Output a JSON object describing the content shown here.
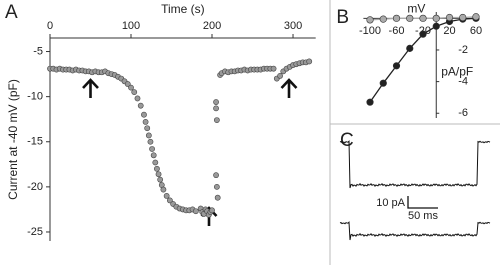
{
  "chart_data": [
    {
      "type": "scatter",
      "panel_label": "A",
      "x_label": "Time (s)",
      "y_label": "Current at -40 mV (pF)",
      "x_axis_position": "top",
      "color": "#999999",
      "x": [
        0,
        4,
        8,
        12,
        16,
        20,
        24,
        28,
        32,
        36,
        40,
        44,
        48,
        52,
        56,
        60,
        64,
        68,
        72,
        76,
        80,
        84,
        88,
        92,
        96,
        100,
        104,
        108,
        112,
        116,
        118,
        120,
        122,
        124,
        126,
        128,
        130,
        132,
        134,
        136,
        138,
        140,
        144,
        148,
        152,
        156,
        160,
        164,
        168,
        172,
        176,
        180,
        186,
        188,
        190,
        192,
        194,
        196,
        198,
        200,
        205,
        205,
        206,
        205,
        206,
        207,
        210,
        212,
        216,
        220,
        224,
        228,
        232,
        236,
        240,
        244,
        248,
        252,
        256,
        260,
        264,
        268,
        272,
        276,
        280,
        284,
        288,
        292,
        296,
        300,
        304,
        308,
        312,
        316,
        320
      ],
      "values": [
        -6.9,
        -6.9,
        -7.0,
        -6.9,
        -7.0,
        -7.0,
        -7.0,
        -7.1,
        -7.0,
        -7.1,
        -7.1,
        -7.2,
        -7.2,
        -7.3,
        -7.2,
        -7.3,
        -7.3,
        -7.2,
        -7.4,
        -7.5,
        -7.6,
        -7.8,
        -8.0,
        -8.3,
        -8.6,
        -9.0,
        -9.5,
        -10.2,
        -11.0,
        -12.0,
        -12.8,
        -13.5,
        -14.3,
        -15.0,
        -15.8,
        -16.5,
        -17.3,
        -18.0,
        -18.6,
        -19.2,
        -19.8,
        -20.3,
        -21.0,
        -21.5,
        -21.9,
        -22.2,
        -22.4,
        -22.5,
        -22.6,
        -22.6,
        -22.5,
        -22.7,
        -22.4,
        -22.8,
        -23.0,
        -22.5,
        -22.7,
        -23.1,
        -22.8,
        -22.6,
        -10.6,
        -11.3,
        -12.6,
        -18.7,
        -20.0,
        -21.2,
        -7.6,
        -7.4,
        -7.2,
        -7.3,
        -7.2,
        -7.2,
        -7.1,
        -7.1,
        -7.0,
        -7.1,
        -7.0,
        -7.0,
        -7.0,
        -7.0,
        -6.9,
        -6.9,
        -6.9,
        -6.9,
        -8.0,
        -7.7,
        -7.2,
        -6.9,
        -6.7,
        -6.5,
        -6.4,
        -6.3,
        -6.2,
        -6.2,
        -6.1
      ],
      "xlim": [
        0,
        328
      ],
      "xticks": [
        0,
        100,
        200,
        300
      ],
      "ylim": [
        -26,
        -3.5
      ],
      "yticks": [
        -5,
        -10,
        -15,
        -20,
        -25
      ]
    },
    {
      "type": "line",
      "panel_label": "B",
      "x_label": "mV",
      "y_label": "pA/pF",
      "axes_cross_at_zero": true,
      "x": [
        -100,
        -80,
        -60,
        -40,
        -20,
        0,
        20,
        40,
        60
      ],
      "series": [
        {
          "color": "#222222",
          "values": [
            -5.3,
            -4.1,
            -3.0,
            -1.9,
            -1.0,
            -0.5,
            -0.2,
            -0.05,
            0
          ]
        },
        {
          "color": "#aaaaaa",
          "values": [
            -0.1,
            -0.05,
            0,
            0,
            0,
            0,
            0.05,
            0.05,
            0.1
          ]
        }
      ],
      "xlim": [
        -110,
        65
      ],
      "xticks": [
        -100,
        -60,
        -20,
        20,
        60
      ],
      "ylim": [
        -6.3,
        0.4
      ],
      "yticks": [
        -2,
        -4,
        -6
      ]
    }
  ],
  "panel_c": {
    "label": "C",
    "scale_y": "10 pA",
    "scale_x": "50 ms"
  }
}
